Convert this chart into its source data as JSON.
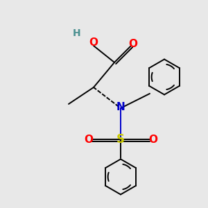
{
  "background_color": "#e8e8e8",
  "atom_colors": {
    "O": "#ff0000",
    "N": "#0000cc",
    "S": "#cccc00",
    "H": "#4a9090",
    "C": "#000000"
  },
  "bond_lw": 1.4,
  "font_size_atom": 11,
  "font_size_H": 10
}
